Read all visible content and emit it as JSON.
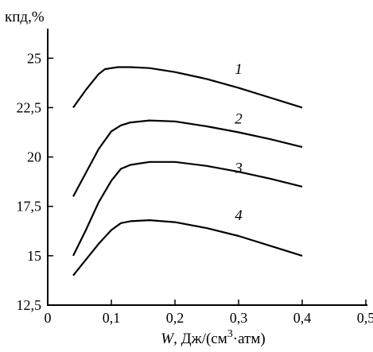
{
  "chart_data": {
    "type": "line",
    "title": "",
    "ylabel": "кпд,%",
    "xlabel_parts": {
      "var": "W",
      "rest": ", Дж/(см",
      "sup": "3",
      "end": "·атм)"
    },
    "xlim": [
      0,
      0.5
    ],
    "ylim": [
      12.5,
      26.5
    ],
    "x_ticks": [
      0,
      0.1,
      0.2,
      0.3,
      0.4,
      0.5
    ],
    "x_tick_labels": [
      "0",
      "0,1",
      "0,2",
      "0,3",
      "0,4",
      "0,5"
    ],
    "y_ticks": [
      12.5,
      15,
      17.5,
      20,
      22.5,
      25
    ],
    "y_tick_labels": [
      "12,5",
      "15",
      "17,5",
      "20",
      "22,5",
      "25"
    ],
    "grid": false,
    "series": [
      {
        "name": "1",
        "x": [
          0.04,
          0.06,
          0.08,
          0.09,
          0.11,
          0.13,
          0.16,
          0.2,
          0.25,
          0.3,
          0.35,
          0.4
        ],
        "values": [
          22.5,
          23.4,
          24.2,
          24.45,
          24.55,
          24.55,
          24.5,
          24.3,
          23.95,
          23.5,
          23.0,
          22.5
        ],
        "label_at": [
          0.3,
          24.2
        ]
      },
      {
        "name": "2",
        "x": [
          0.04,
          0.06,
          0.08,
          0.1,
          0.115,
          0.13,
          0.16,
          0.2,
          0.25,
          0.3,
          0.35,
          0.4
        ],
        "values": [
          18.0,
          19.2,
          20.4,
          21.3,
          21.6,
          21.75,
          21.85,
          21.8,
          21.55,
          21.25,
          20.9,
          20.5
        ],
        "label_at": [
          0.3,
          21.7
        ]
      },
      {
        "name": "3",
        "x": [
          0.04,
          0.06,
          0.08,
          0.1,
          0.115,
          0.13,
          0.16,
          0.2,
          0.25,
          0.3,
          0.35,
          0.4
        ],
        "values": [
          15.0,
          16.3,
          17.7,
          18.8,
          19.4,
          19.6,
          19.75,
          19.75,
          19.55,
          19.25,
          18.9,
          18.5
        ],
        "label_at": [
          0.3,
          19.2
        ]
      },
      {
        "name": "4",
        "x": [
          0.04,
          0.06,
          0.08,
          0.1,
          0.115,
          0.13,
          0.16,
          0.2,
          0.25,
          0.3,
          0.35,
          0.4
        ],
        "values": [
          14.0,
          14.8,
          15.6,
          16.3,
          16.65,
          16.75,
          16.8,
          16.7,
          16.4,
          16.0,
          15.5,
          15.0
        ],
        "label_at": [
          0.3,
          16.8
        ]
      }
    ]
  }
}
